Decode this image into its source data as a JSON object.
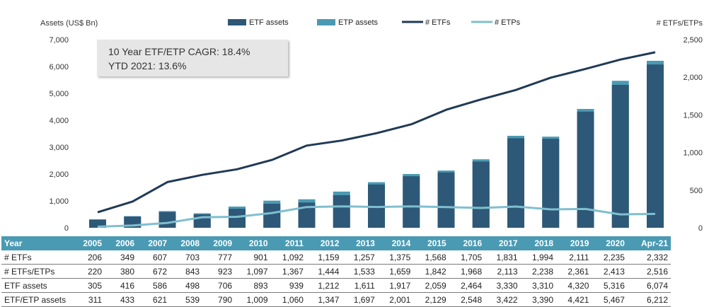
{
  "chart_data": {
    "type": "bar",
    "categories": [
      "2005",
      "2006",
      "2007",
      "2008",
      "2009",
      "2010",
      "2011",
      "2012",
      "2013",
      "2014",
      "2015",
      "2016",
      "2017",
      "2018",
      "2019",
      "2020",
      "Apr-21"
    ],
    "left_axis_label": "Assets (US$ Bn)",
    "right_axis_label": "# ETFs/ETPs",
    "ylim_left": [
      0,
      7000
    ],
    "ylim_right": [
      0,
      2500
    ],
    "left_ticks": [
      "0",
      "1,000",
      "2,000",
      "3,000",
      "4,000",
      "5,000",
      "6,000",
      "7,000"
    ],
    "right_ticks": [
      "0",
      "500",
      "1,000",
      "1,500",
      "2,000",
      "2,500"
    ],
    "grid": false,
    "legend_position": "top",
    "series": [
      {
        "name": "ETF assets",
        "kind": "bar",
        "axis": "left",
        "color": "#2e5877",
        "values": [
          305,
          416,
          586,
          498,
          706,
          893,
          939,
          1212,
          1611,
          1917,
          2059,
          2464,
          3330,
          3310,
          4320,
          5316,
          6074
        ]
      },
      {
        "name": "ETP assets",
        "kind": "bar-stack",
        "axis": "left",
        "color": "#4b9ab3",
        "values": [
          311,
          433,
          621,
          539,
          790,
          1009,
          1060,
          1347,
          1697,
          2001,
          2129,
          2548,
          3422,
          3390,
          4421,
          5467,
          6212
        ]
      },
      {
        "name": "# ETFs",
        "kind": "line",
        "axis": "right",
        "color": "#1f3a56",
        "values": [
          206,
          349,
          607,
          703,
          777,
          901,
          1092,
          1159,
          1257,
          1375,
          1568,
          1705,
          1831,
          1994,
          2111,
          2235,
          2332
        ]
      },
      {
        "name": "# ETPs",
        "kind": "line",
        "axis": "right",
        "color": "#7fbfcf",
        "values": [
          14,
          31,
          65,
          140,
          146,
          196,
          275,
          285,
          276,
          284,
          274,
          263,
          282,
          244,
          250,
          178,
          184
        ]
      }
    ]
  },
  "annotation": {
    "line1": "10 Year ETF/ETP CAGR: 18.4%",
    "line2": "YTD 2021: 13.6%"
  },
  "table": {
    "header": {
      "label": "Year",
      "cells": [
        "2005",
        "2006",
        "2007",
        "2008",
        "2009",
        "2010",
        "2011",
        "2012",
        "2013",
        "2014",
        "2015",
        "2016",
        "2017",
        "2018",
        "2019",
        "2020",
        "Apr-21"
      ]
    },
    "rows": [
      {
        "label": "# ETFs",
        "cells": [
          "206",
          "349",
          "607",
          "703",
          "777",
          "901",
          "1,092",
          "1,159",
          "1,257",
          "1,375",
          "1,568",
          "1,705",
          "1,831",
          "1,994",
          "2,111",
          "2,235",
          "2,332"
        ]
      },
      {
        "label": "# ETFs/ETPs",
        "cells": [
          "220",
          "380",
          "672",
          "843",
          "923",
          "1,097",
          "1,367",
          "1,444",
          "1,533",
          "1,659",
          "1,842",
          "1,968",
          "2,113",
          "2,238",
          "2,361",
          "2,413",
          "2,516"
        ]
      },
      {
        "label": "ETF assets",
        "cells": [
          "305",
          "416",
          "586",
          "498",
          "706",
          "893",
          "939",
          "1,212",
          "1,611",
          "1,917",
          "2,059",
          "2,464",
          "3,330",
          "3,310",
          "4,320",
          "5,316",
          "6,074"
        ]
      },
      {
        "label": "ETF/ETP assets",
        "cells": [
          "311",
          "433",
          "621",
          "539",
          "790",
          "1,009",
          "1,060",
          "1,347",
          "1,697",
          "2,001",
          "2,129",
          "2,548",
          "3,422",
          "3,390",
          "4,421",
          "5,467",
          "6,212"
        ]
      }
    ]
  }
}
